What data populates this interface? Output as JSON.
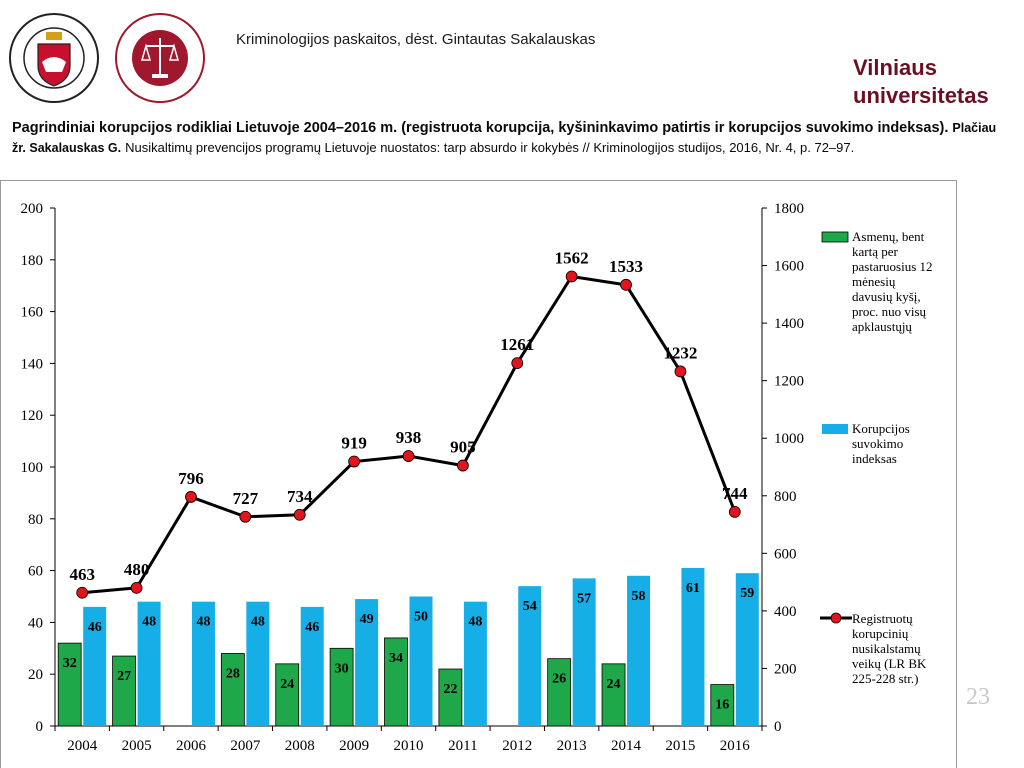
{
  "header": {
    "course_title": "Kriminologijos paskaitos, dėst. Gintautas Sakalauskas",
    "brand_line1": "Vilniaus",
    "brand_line2": "universitetas",
    "heading_main": "Pagrindiniai korupcijos rodikliai Lietuvoje 2004–2016 m. (registruota korupcija, kyšininkavimo patirtis ir korupcijos suvokimo indeksas).",
    "heading_ref": "Plačiau žr. Sakalauskas G.",
    "heading_rest": "Nusikaltimų prevencijos programų Lietuvoje nuostatos: tarp absurdo ir kokybės // Kriminologijos studijos, 2016, Nr. 4, p. 72–97."
  },
  "logos": {
    "left": "university-seal-icon",
    "right": "law-faculty-seal-icon"
  },
  "slide": {
    "page_number": "23"
  },
  "chart_data": {
    "type": "bar",
    "categories": [
      "2004",
      "2005",
      "2006",
      "2007",
      "2008",
      "2009",
      "2010",
      "2011",
      "2012",
      "2013",
      "2014",
      "2015",
      "2016"
    ],
    "series": [
      {
        "name": "Asmenų, bent kartą per pastaruosius 12 mėnesių davusių kyšį, proc. nuo visų apklaustųjų",
        "type": "bar",
        "axis": "left",
        "color": "#1fa84a",
        "values": [
          32,
          27,
          null,
          28,
          24,
          30,
          34,
          22,
          null,
          26,
          24,
          null,
          16
        ]
      },
      {
        "name": "Korupcijos suvokimo indeksas",
        "type": "bar",
        "axis": "left",
        "color": "#15aee6",
        "values": [
          46,
          48,
          48,
          48,
          46,
          49,
          50,
          48,
          54,
          57,
          58,
          61,
          59
        ]
      },
      {
        "name": "Registruotų korupcinių nusikalstamų veikų (LR BK 225-228 str.)",
        "type": "line",
        "axis": "right",
        "color": "#000000",
        "marker_color": "#e3141b",
        "values": [
          463,
          480,
          796,
          727,
          734,
          919,
          938,
          905,
          1261,
          1562,
          1533,
          1232,
          744
        ]
      }
    ],
    "y_left": {
      "ylim": [
        0,
        200
      ],
      "ticks": [
        "0",
        "20",
        "40",
        "60",
        "80",
        "100",
        "120",
        "140",
        "160",
        "180",
        "200"
      ]
    },
    "y_right": {
      "ylim": [
        0,
        1800
      ],
      "ticks": [
        "0",
        "200",
        "400",
        "600",
        "800",
        "1000",
        "1200",
        "1400",
        "1600",
        "1800"
      ]
    },
    "legend_position": "right",
    "legend": [
      {
        "lines": [
          "Asmenų, bent",
          "kartą per",
          "pastaruosius 12",
          "mėnesių",
          "davusių kyšį,",
          "proc. nuo visų",
          "apklaustųjų"
        ]
      },
      {
        "lines": [
          "Korupcijos",
          "suvokimo",
          "indeksas"
        ]
      },
      {
        "lines": [
          "Registruotų",
          "korupcinių",
          "nusikalstamų",
          "veikų (LR BK",
          "225-228 str.)"
        ]
      }
    ]
  }
}
